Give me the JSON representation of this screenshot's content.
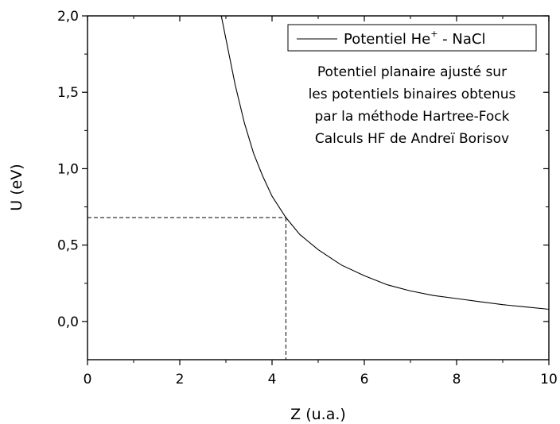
{
  "chart_data": {
    "type": "line",
    "xlabel": "Z (u.a.)",
    "ylabel": "U (eV)",
    "xlim": [
      0,
      10
    ],
    "ylim": [
      -0.25,
      2.0
    ],
    "x_ticks": [
      {
        "value": 0,
        "label": "0"
      },
      {
        "value": 2,
        "label": "2"
      },
      {
        "value": 4,
        "label": "4"
      },
      {
        "value": 6,
        "label": "6"
      },
      {
        "value": 8,
        "label": "8"
      },
      {
        "value": 10,
        "label": "10"
      }
    ],
    "y_ticks": [
      {
        "value": 0.0,
        "label": "0,0"
      },
      {
        "value": 0.5,
        "label": "0,5"
      },
      {
        "value": 1.0,
        "label": "1,0"
      },
      {
        "value": 1.5,
        "label": "1,5"
      },
      {
        "value": 2.0,
        "label": "2,0"
      }
    ],
    "grid": false,
    "legend_position": "top-right",
    "series": [
      {
        "name": "Potentiel He+ - NaCl",
        "legend_label": {
          "main": "Potentiel He",
          "sup": "+",
          "tail": " - NaCl"
        },
        "color": "#000000",
        "x": [
          2.9,
          3.0,
          3.2,
          3.4,
          3.6,
          3.8,
          4.0,
          4.3,
          4.6,
          5.0,
          5.5,
          6.0,
          6.5,
          7.0,
          7.5,
          8.0,
          8.5,
          9.0,
          9.5,
          10.0
        ],
        "y": [
          2.0,
          1.85,
          1.55,
          1.3,
          1.1,
          0.95,
          0.82,
          0.68,
          0.57,
          0.47,
          0.37,
          0.3,
          0.24,
          0.2,
          0.17,
          0.15,
          0.13,
          0.11,
          0.095,
          0.08
        ]
      }
    ],
    "reference_point": {
      "x": 4.3,
      "y": 0.68,
      "style": "dashed"
    },
    "annotation_lines": [
      "Potentiel planaire ajusté sur",
      "les potentiels binaires obtenus",
      "par la méthode Hartree-Fock",
      "Calculs HF de Andreï Borisov"
    ]
  }
}
